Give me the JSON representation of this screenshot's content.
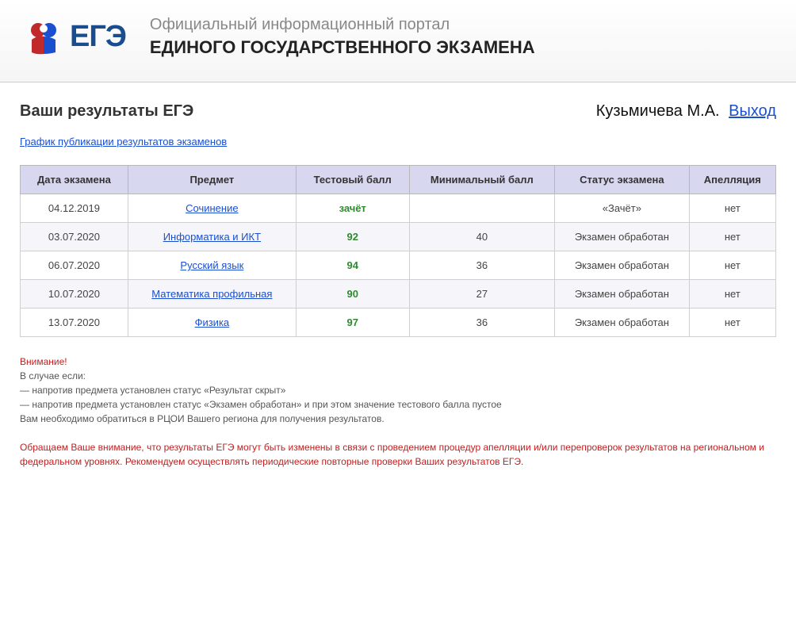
{
  "header": {
    "logo_text": "ЕГЭ",
    "subtitle": "Официальный информационный портал",
    "title": "ЕДИНОГО ГОСУДАРСТВЕННОГО ЭКЗАМЕНА"
  },
  "page": {
    "title": "Ваши результаты ЕГЭ",
    "user_name": "Кузьмичева М.А.",
    "logout_label": "Выход",
    "schedule_link_label": "График публикации результатов экзаменов"
  },
  "table": {
    "columns": [
      "Дата экзамена",
      "Предмет",
      "Тестовый балл",
      "Минимальный балл",
      "Статус экзамена",
      "Апелляция"
    ],
    "rows": [
      {
        "date": "04.12.2019",
        "subject": "Сочинение",
        "score": "зачёт",
        "min": "",
        "status": "«Зачёт»",
        "appeal": "нет"
      },
      {
        "date": "03.07.2020",
        "subject": "Информатика и ИКТ",
        "score": "92",
        "min": "40",
        "status": "Экзамен обработан",
        "appeal": "нет"
      },
      {
        "date": "06.07.2020",
        "subject": "Русский язык",
        "score": "94",
        "min": "36",
        "status": "Экзамен обработан",
        "appeal": "нет"
      },
      {
        "date": "10.07.2020",
        "subject": "Математика профильная",
        "score": "90",
        "min": "27",
        "status": "Экзамен обработан",
        "appeal": "нет"
      },
      {
        "date": "13.07.2020",
        "subject": "Физика",
        "score": "97",
        "min": "36",
        "status": "Экзамен обработан",
        "appeal": "нет"
      }
    ]
  },
  "notice": {
    "attention": "Внимание!",
    "line1": "В случае если:",
    "line2": "— напротив предмета установлен статус «Результат скрыт»",
    "line3": "— напротив предмета установлен статус «Экзамен обработан» и при этом значение тестового балла пустое",
    "line4": "Вам необходимо обратиться в РЦОИ Вашего региона для получения результатов.",
    "para2": "Обращаем Ваше внимание, что результаты ЕГЭ могут быть изменены в связи с проведением процедур апелляции и/или перепроверок результатов на региональном и федеральном уровнях. Рекомендуем осуществлять периодические повторные проверки Ваших результатов ЕГЭ."
  },
  "colors": {
    "header_th_bg": "#d8d7f0",
    "link": "#1a4fd0",
    "score_green": "#2e8b2e",
    "warning_red": "#c02020"
  }
}
